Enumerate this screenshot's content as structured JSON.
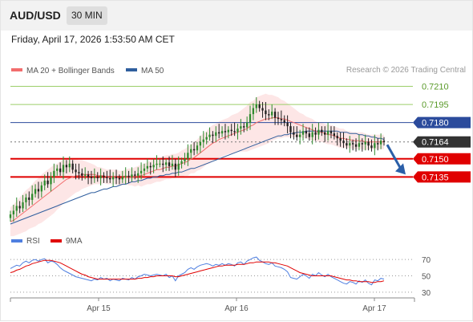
{
  "header": {
    "symbol": "AUD/USD",
    "timeframe": "30 MIN",
    "timestamp": "Friday, April 17, 2026 1:53:50 AM CET"
  },
  "colors": {
    "ma20": "#f26d6d",
    "ma50": "#2f5e9e",
    "bollinger_fill": "#fde2e2",
    "resistance_green": "#9ccf6a",
    "support_red": "#e00000",
    "pivot_blue": "#2b4b9c",
    "last_price_bg": "#333333",
    "candle_up": "#2e8b2e",
    "candle_down": "#1f1f1f",
    "arrow": "#2b5fa8",
    "rsi": "#4f7fe0",
    "rsi_ma": "#e00000"
  },
  "chart_data": [
    {
      "type": "line",
      "name": "price",
      "legend": [
        {
          "label": "MA 20 + Bollinger Bands",
          "color": "#f26d6d"
        },
        {
          "label": "MA 50",
          "color": "#2f5e9e"
        }
      ],
      "credit": "Research © 2026 Trading Central",
      "x_ticks": [
        "Apr 15",
        "Apr 16",
        "Apr 17"
      ],
      "ylim": [
        0.71,
        0.7217
      ],
      "close": [
        0.7104,
        0.7107,
        0.7111,
        0.7109,
        0.7114,
        0.7118,
        0.7116,
        0.7121,
        0.7125,
        0.7123,
        0.7128,
        0.7132,
        0.7129,
        0.7135,
        0.714,
        0.7142,
        0.7139,
        0.7145,
        0.7143,
        0.7146,
        0.7141,
        0.7139,
        0.7138,
        0.7136,
        0.7137,
        0.7135,
        0.7134,
        0.7135,
        0.7134,
        0.7136,
        0.7135,
        0.7134,
        0.7133,
        0.7135,
        0.7134,
        0.7133,
        0.7135,
        0.7136,
        0.7135,
        0.7137,
        0.7136,
        0.7138,
        0.714,
        0.7142,
        0.7144,
        0.7143,
        0.7145,
        0.7146,
        0.7146,
        0.7145,
        0.7147,
        0.7144,
        0.7146,
        0.7141,
        0.7146,
        0.7148,
        0.715,
        0.7155,
        0.7158,
        0.7157,
        0.7161,
        0.7164,
        0.7166,
        0.7168,
        0.717,
        0.7169,
        0.7172,
        0.7171,
        0.7173,
        0.7172,
        0.7174,
        0.7173,
        0.7172,
        0.7175,
        0.7177,
        0.7176,
        0.718,
        0.7187,
        0.7192,
        0.7195,
        0.7192,
        0.719,
        0.7187,
        0.7186,
        0.7189,
        0.7184,
        0.7183,
        0.7182,
        0.718,
        0.7177,
        0.7172,
        0.717,
        0.7168,
        0.717,
        0.7173,
        0.7171,
        0.7168,
        0.7172,
        0.717,
        0.7174,
        0.7172,
        0.717,
        0.7173,
        0.7171,
        0.7169,
        0.7167,
        0.7165,
        0.7163,
        0.7161,
        0.7163,
        0.7162,
        0.716,
        0.7163,
        0.7162,
        0.7164,
        0.7161,
        0.7159,
        0.7163,
        0.7162,
        0.7165,
        0.7164
      ],
      "ma20": [
        0.7098,
        0.7099,
        0.7101,
        0.7103,
        0.7105,
        0.7107,
        0.7109,
        0.7111,
        0.7113,
        0.7115,
        0.7117,
        0.7119,
        0.7121,
        0.7123,
        0.7125,
        0.7127,
        0.7129,
        0.7131,
        0.7133,
        0.7134,
        0.7135,
        0.7136,
        0.7136,
        0.7137,
        0.7137,
        0.7137,
        0.7137,
        0.7137,
        0.7136,
        0.7136,
        0.7136,
        0.7135,
        0.7135,
        0.7135,
        0.7135,
        0.7134,
        0.7134,
        0.7135,
        0.7135,
        0.7135,
        0.7135,
        0.7136,
        0.7136,
        0.7137,
        0.7138,
        0.7139,
        0.714,
        0.7141,
        0.7141,
        0.7142,
        0.7143,
        0.7143,
        0.7144,
        0.7144,
        0.7145,
        0.7146,
        0.7147,
        0.7148,
        0.715,
        0.7151,
        0.7153,
        0.7155,
        0.7157,
        0.7159,
        0.7161,
        0.7163,
        0.7164,
        0.7166,
        0.7167,
        0.7168,
        0.7169,
        0.717,
        0.7171,
        0.7172,
        0.7173,
        0.7174,
        0.7175,
        0.7177,
        0.7178,
        0.718,
        0.7181,
        0.7182,
        0.7183,
        0.7183,
        0.7184,
        0.7184,
        0.7184,
        0.7183,
        0.7183,
        0.7182,
        0.7181,
        0.718,
        0.7179,
        0.7178,
        0.7177,
        0.7176,
        0.7175,
        0.7174,
        0.7173,
        0.7172,
        0.7172,
        0.7171,
        0.717,
        0.717,
        0.7169,
        0.7168,
        0.7167,
        0.7167,
        0.7166,
        0.7166,
        0.7165,
        0.7165,
        0.7165,
        0.7165,
        0.7164,
        0.7164,
        0.7164,
        0.7164,
        0.7164,
        0.7164,
        0.7164
      ],
      "ma50": [
        0.7096,
        0.7097,
        0.7098,
        0.7099,
        0.71,
        0.7101,
        0.7102,
        0.7103,
        0.7104,
        0.7105,
        0.7106,
        0.7107,
        0.7108,
        0.7109,
        0.711,
        0.7111,
        0.7112,
        0.7113,
        0.7114,
        0.7115,
        0.7116,
        0.7117,
        0.7118,
        0.7119,
        0.712,
        0.7121,
        0.7122,
        0.7122,
        0.7123,
        0.7124,
        0.7125,
        0.7125,
        0.7126,
        0.7127,
        0.7127,
        0.7128,
        0.7129,
        0.7129,
        0.713,
        0.7131,
        0.7131,
        0.7132,
        0.7132,
        0.7133,
        0.7134,
        0.7134,
        0.7135,
        0.7135,
        0.7136,
        0.7136,
        0.7137,
        0.7137,
        0.7138,
        0.7138,
        0.7139,
        0.7139,
        0.714,
        0.7141,
        0.7142,
        0.7142,
        0.7143,
        0.7144,
        0.7145,
        0.7146,
        0.7147,
        0.7148,
        0.7149,
        0.715,
        0.7151,
        0.7152,
        0.7153,
        0.7154,
        0.7155,
        0.7156,
        0.7157,
        0.7158,
        0.7159,
        0.716,
        0.7161,
        0.7162,
        0.7163,
        0.7164,
        0.7165,
        0.7166,
        0.7167,
        0.7168,
        0.7169,
        0.7169,
        0.717,
        0.717,
        0.7171,
        0.7171,
        0.7172,
        0.7172,
        0.7172,
        0.7173,
        0.7173,
        0.7173,
        0.7173,
        0.7173,
        0.7173,
        0.7173,
        0.7173,
        0.7173,
        0.7173,
        0.7173,
        0.7172,
        0.7172,
        0.7172,
        0.7171,
        0.7171,
        0.7171,
        0.717,
        0.717,
        0.7169,
        0.7169,
        0.7168,
        0.7168,
        0.7167,
        0.7167,
        0.7166
      ],
      "bb_width": [
        0.0012,
        0.0013,
        0.0014,
        0.0015,
        0.0016,
        0.0017,
        0.0017,
        0.0018,
        0.0019,
        0.0019,
        0.002,
        0.002,
        0.002,
        0.002,
        0.002,
        0.0019,
        0.0019,
        0.0018,
        0.0017,
        0.0016,
        0.0015,
        0.0014,
        0.0013,
        0.0012,
        0.0011,
        0.001,
        0.0009,
        0.0008,
        0.0007,
        0.0007,
        0.0006,
        0.0006,
        0.0006,
        0.0006,
        0.0006,
        0.0006,
        0.0006,
        0.0006,
        0.0007,
        0.0007,
        0.0008,
        0.0008,
        0.0009,
        0.0009,
        0.0009,
        0.001,
        0.001,
        0.001,
        0.001,
        0.001,
        0.001,
        0.001,
        0.001,
        0.001,
        0.001,
        0.0011,
        0.0011,
        0.0012,
        0.0012,
        0.0013,
        0.0013,
        0.0014,
        0.0014,
        0.0014,
        0.0015,
        0.0015,
        0.0015,
        0.0015,
        0.0015,
        0.0015,
        0.0015,
        0.0016,
        0.0016,
        0.0016,
        0.0017,
        0.0018,
        0.0019,
        0.002,
        0.002,
        0.0021,
        0.0021,
        0.0021,
        0.0021,
        0.002,
        0.0019,
        0.0018,
        0.0017,
        0.0016,
        0.0015,
        0.0014,
        0.0013,
        0.0012,
        0.0011,
        0.001,
        0.001,
        0.0009,
        0.0009,
        0.0009,
        0.0008,
        0.0008,
        0.0008,
        0.0008,
        0.0008,
        0.0008,
        0.0008,
        0.0008,
        0.0008,
        0.0008,
        0.0007,
        0.0007,
        0.0007,
        0.0007,
        0.0007,
        0.0007,
        0.0007,
        0.0006,
        0.0006,
        0.0006,
        0.0006,
        0.0006,
        0.0006
      ],
      "levels": [
        {
          "label": "0.7210",
          "value": 0.721,
          "kind": "resistance",
          "color": "#9ccf6a"
        },
        {
          "label": "0.7195",
          "value": 0.7195,
          "kind": "resistance",
          "color": "#9ccf6a"
        },
        {
          "label": "0.7180",
          "value": 0.718,
          "kind": "pivot",
          "color": "#2b4b9c"
        },
        {
          "label": "0.7164",
          "value": 0.7164,
          "kind": "last",
          "color": "#333333"
        },
        {
          "label": "0.7150",
          "value": 0.715,
          "kind": "support",
          "color": "#e00000"
        },
        {
          "label": "0.7135",
          "value": 0.7135,
          "kind": "support",
          "color": "#e00000"
        }
      ],
      "arrow": {
        "from": 0.7163,
        "to": 0.7137
      }
    },
    {
      "type": "line",
      "name": "oscillator",
      "legend": [
        {
          "label": "RSI",
          "color": "#4f7fe0"
        },
        {
          "label": "9MA",
          "color": "#e00000"
        }
      ],
      "ylim": [
        25,
        80
      ],
      "y_ticks": [
        "70",
        "50",
        "30"
      ],
      "rsi": [
        59,
        61,
        63,
        62,
        66,
        68,
        66,
        69,
        70,
        68,
        70,
        71,
        66,
        68,
        67,
        64,
        60,
        57,
        55,
        53,
        51,
        49,
        48,
        47,
        46,
        45,
        44,
        46,
        45,
        48,
        46,
        47,
        44,
        46,
        45,
        44,
        47,
        46,
        45,
        48,
        46,
        49,
        50,
        52,
        51,
        50,
        51,
        52,
        51,
        50,
        52,
        48,
        50,
        44,
        50,
        52,
        54,
        58,
        60,
        58,
        61,
        63,
        64,
        65,
        64,
        62,
        64,
        63,
        65,
        63,
        65,
        64,
        62,
        66,
        67,
        64,
        68,
        70,
        72,
        73,
        69,
        67,
        65,
        64,
        66,
        62,
        61,
        60,
        58,
        55,
        48,
        47,
        46,
        49,
        52,
        50,
        47,
        52,
        50,
        54,
        51,
        49,
        52,
        49,
        47,
        45,
        43,
        41,
        40,
        43,
        42,
        40,
        44,
        42,
        45,
        41,
        39,
        45,
        44,
        47,
        46
      ],
      "rsi_ma": [
        54,
        55,
        57,
        58,
        60,
        62,
        63,
        65,
        66,
        67,
        68,
        69,
        69,
        69,
        68,
        67,
        66,
        64,
        62,
        60,
        58,
        56,
        54,
        52,
        51,
        49,
        48,
        47,
        46,
        46,
        46,
        46,
        46,
        46,
        46,
        46,
        46,
        46,
        46,
        46,
        46,
        47,
        47,
        48,
        48,
        49,
        49,
        50,
        50,
        50,
        50,
        50,
        50,
        49,
        49,
        50,
        51,
        52,
        53,
        54,
        55,
        56,
        57,
        58,
        59,
        60,
        61,
        62,
        62,
        63,
        63,
        63,
        63,
        64,
        64,
        64,
        65,
        66,
        66,
        67,
        67,
        67,
        67,
        67,
        66,
        66,
        65,
        64,
        63,
        62,
        60,
        58,
        56,
        54,
        53,
        52,
        51,
        50,
        50,
        50,
        50,
        50,
        50,
        50,
        49,
        48,
        47,
        46,
        45,
        45,
        44,
        44,
        43,
        43,
        43,
        43,
        42,
        42,
        43,
        43,
        44
      ]
    }
  ]
}
